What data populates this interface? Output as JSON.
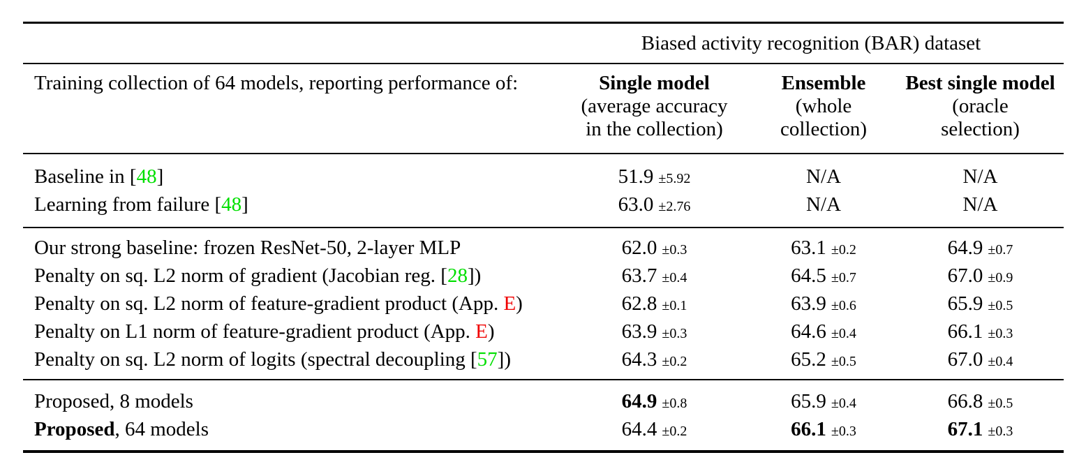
{
  "colors": {
    "citation_green": "#00DF00",
    "link_red": "#F00000",
    "text_black": "#000000",
    "rule_black": "#000000"
  },
  "table": {
    "group_header": "Biased activity recognition (BAR) dataset",
    "corner_header": "Training collection of 64 models, reporting performance of:",
    "columns": [
      {
        "title": "Single model",
        "sub1": "(average accuracy",
        "sub2": "in the collection)"
      },
      {
        "title": "Ensemble",
        "sub1": "(whole",
        "sub2": "collection)"
      },
      {
        "title": "Best single model",
        "sub1": "(oracle",
        "sub2": "selection)"
      }
    ],
    "sections": [
      {
        "rows": [
          {
            "label": [
              {
                "t": "Baseline in ["
              },
              {
                "t": "48",
                "c": "citation_green"
              },
              {
                "t": "]"
              }
            ],
            "cells": [
              {
                "v": "51.9",
                "pm": "±5.92"
              },
              {
                "v": "N/A"
              },
              {
                "v": "N/A"
              }
            ]
          },
          {
            "label": [
              {
                "t": "Learning from failure ["
              },
              {
                "t": "48",
                "c": "citation_green"
              },
              {
                "t": "]"
              }
            ],
            "cells": [
              {
                "v": "63.0",
                "pm": "±2.76"
              },
              {
                "v": "N/A"
              },
              {
                "v": "N/A"
              }
            ]
          }
        ]
      },
      {
        "rows": [
          {
            "label": [
              {
                "t": "Our strong baseline: frozen ResNet-50, 2-layer MLP"
              }
            ],
            "cells": [
              {
                "v": "62.0",
                "pm": "±0.3"
              },
              {
                "v": "63.1",
                "pm": "±0.2"
              },
              {
                "v": "64.9",
                "pm": "±0.7"
              }
            ]
          },
          {
            "label": [
              {
                "t": "Penalty on sq. L2 norm of gradient (Jacobian reg. ["
              },
              {
                "t": "28",
                "c": "citation_green"
              },
              {
                "t": "])"
              }
            ],
            "cells": [
              {
                "v": "63.7",
                "pm": "±0.4"
              },
              {
                "v": "64.5",
                "pm": "±0.7"
              },
              {
                "v": "67.0",
                "pm": "±0.9"
              }
            ]
          },
          {
            "label": [
              {
                "t": "Penalty on sq. L2 norm of feature-gradient product (App. "
              },
              {
                "t": "E",
                "c": "link_red"
              },
              {
                "t": ")"
              }
            ],
            "cells": [
              {
                "v": "62.8",
                "pm": "±0.1"
              },
              {
                "v": "63.9",
                "pm": "±0.6"
              },
              {
                "v": "65.9",
                "pm": "±0.5"
              }
            ]
          },
          {
            "label": [
              {
                "t": "Penalty on L1 norm of feature-gradient product (App. "
              },
              {
                "t": "E",
                "c": "link_red"
              },
              {
                "t": ")"
              }
            ],
            "cells": [
              {
                "v": "63.9",
                "pm": "±0.3"
              },
              {
                "v": "64.6",
                "pm": "±0.4"
              },
              {
                "v": "66.1",
                "pm": "±0.3"
              }
            ]
          },
          {
            "label": [
              {
                "t": "Penalty on sq. L2 norm of logits (spectral decoupling ["
              },
              {
                "t": "57",
                "c": "citation_green"
              },
              {
                "t": "])"
              }
            ],
            "cells": [
              {
                "v": "64.3",
                "pm": "±0.2"
              },
              {
                "v": "65.2",
                "pm": "±0.5"
              },
              {
                "v": "67.0",
                "pm": "±0.4"
              }
            ]
          }
        ]
      },
      {
        "rows": [
          {
            "label": [
              {
                "t": "Proposed, 8 models"
              }
            ],
            "cells": [
              {
                "v": "64.9",
                "pm": "±0.8",
                "bold": true
              },
              {
                "v": "65.9",
                "pm": "±0.4"
              },
              {
                "v": "66.8",
                "pm": "±0.5"
              }
            ]
          },
          {
            "label": [
              {
                "t": "Proposed",
                "b": true
              },
              {
                "t": ", 64 models"
              }
            ],
            "cells": [
              {
                "v": "64.4",
                "pm": "±0.2"
              },
              {
                "v": "66.1",
                "pm": "±0.3",
                "bold": true
              },
              {
                "v": "67.1",
                "pm": "±0.3",
                "bold": true
              }
            ]
          }
        ]
      }
    ]
  }
}
